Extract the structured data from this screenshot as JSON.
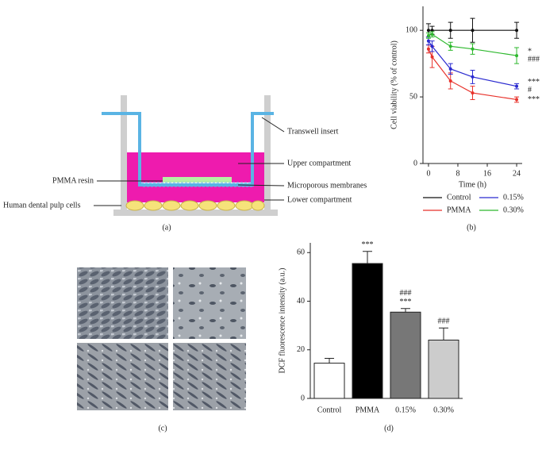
{
  "panel_labels": [
    "(a)",
    "(b)",
    "(c)",
    "(d)"
  ],
  "diagram": {
    "labels": [
      "Transwell insert",
      "Upper compartment",
      "Microporous membranes",
      "Lower compartment",
      "PMMA resin",
      "Human dental pulp cells"
    ]
  },
  "chart_data": [
    {
      "type": "line",
      "x_label": "Time (h)",
      "y_label": "Cell viability (% of control)",
      "x": [
        0,
        1,
        6,
        12,
        24
      ],
      "xlim": [
        -1.5,
        25.5
      ],
      "xticks": [
        0,
        8,
        16,
        24
      ],
      "ylim": [
        0,
        118
      ],
      "yticks": [
        0,
        50,
        100
      ],
      "series": [
        {
          "name": "Control",
          "color": "#111111",
          "values": [
            100,
            100,
            100,
            100,
            100
          ],
          "errors": [
            5,
            3,
            6,
            9,
            6
          ],
          "annotations": []
        },
        {
          "name": "PMMA",
          "color": "#e8322b",
          "values": [
            86,
            80,
            62,
            53,
            48
          ],
          "errors": [
            3,
            8,
            6,
            5,
            2
          ],
          "annotations": [
            "***"
          ]
        },
        {
          "name": "0.15%",
          "color": "#2a2ad0",
          "values": [
            92,
            88,
            71,
            65,
            58
          ],
          "errors": [
            3,
            4,
            4,
            5,
            2
          ],
          "annotations": [
            "***",
            "#"
          ]
        },
        {
          "name": "0.30%",
          "color": "#2db82d",
          "values": [
            96,
            97,
            88,
            86,
            81
          ],
          "errors": [
            2,
            2,
            3,
            4,
            6
          ],
          "annotations": [
            "*",
            "###"
          ]
        }
      ]
    },
    {
      "type": "bar",
      "y_label": "DCF fluorescence intensity (a.u.)",
      "categories": [
        "Control",
        "PMMA",
        "0.15%",
        "0.30%"
      ],
      "values": [
        14.5,
        55.5,
        35.5,
        24
      ],
      "errors": [
        2,
        5,
        1.5,
        5
      ],
      "colors": [
        "#ffffff",
        "#000000",
        "#777777",
        "#cccccc"
      ],
      "annotations": [
        [],
        [
          "***"
        ],
        [
          "###",
          "***"
        ],
        [
          "###"
        ]
      ],
      "ylim": [
        0,
        64
      ],
      "yticks": [
        0,
        20,
        40,
        60
      ]
    }
  ]
}
